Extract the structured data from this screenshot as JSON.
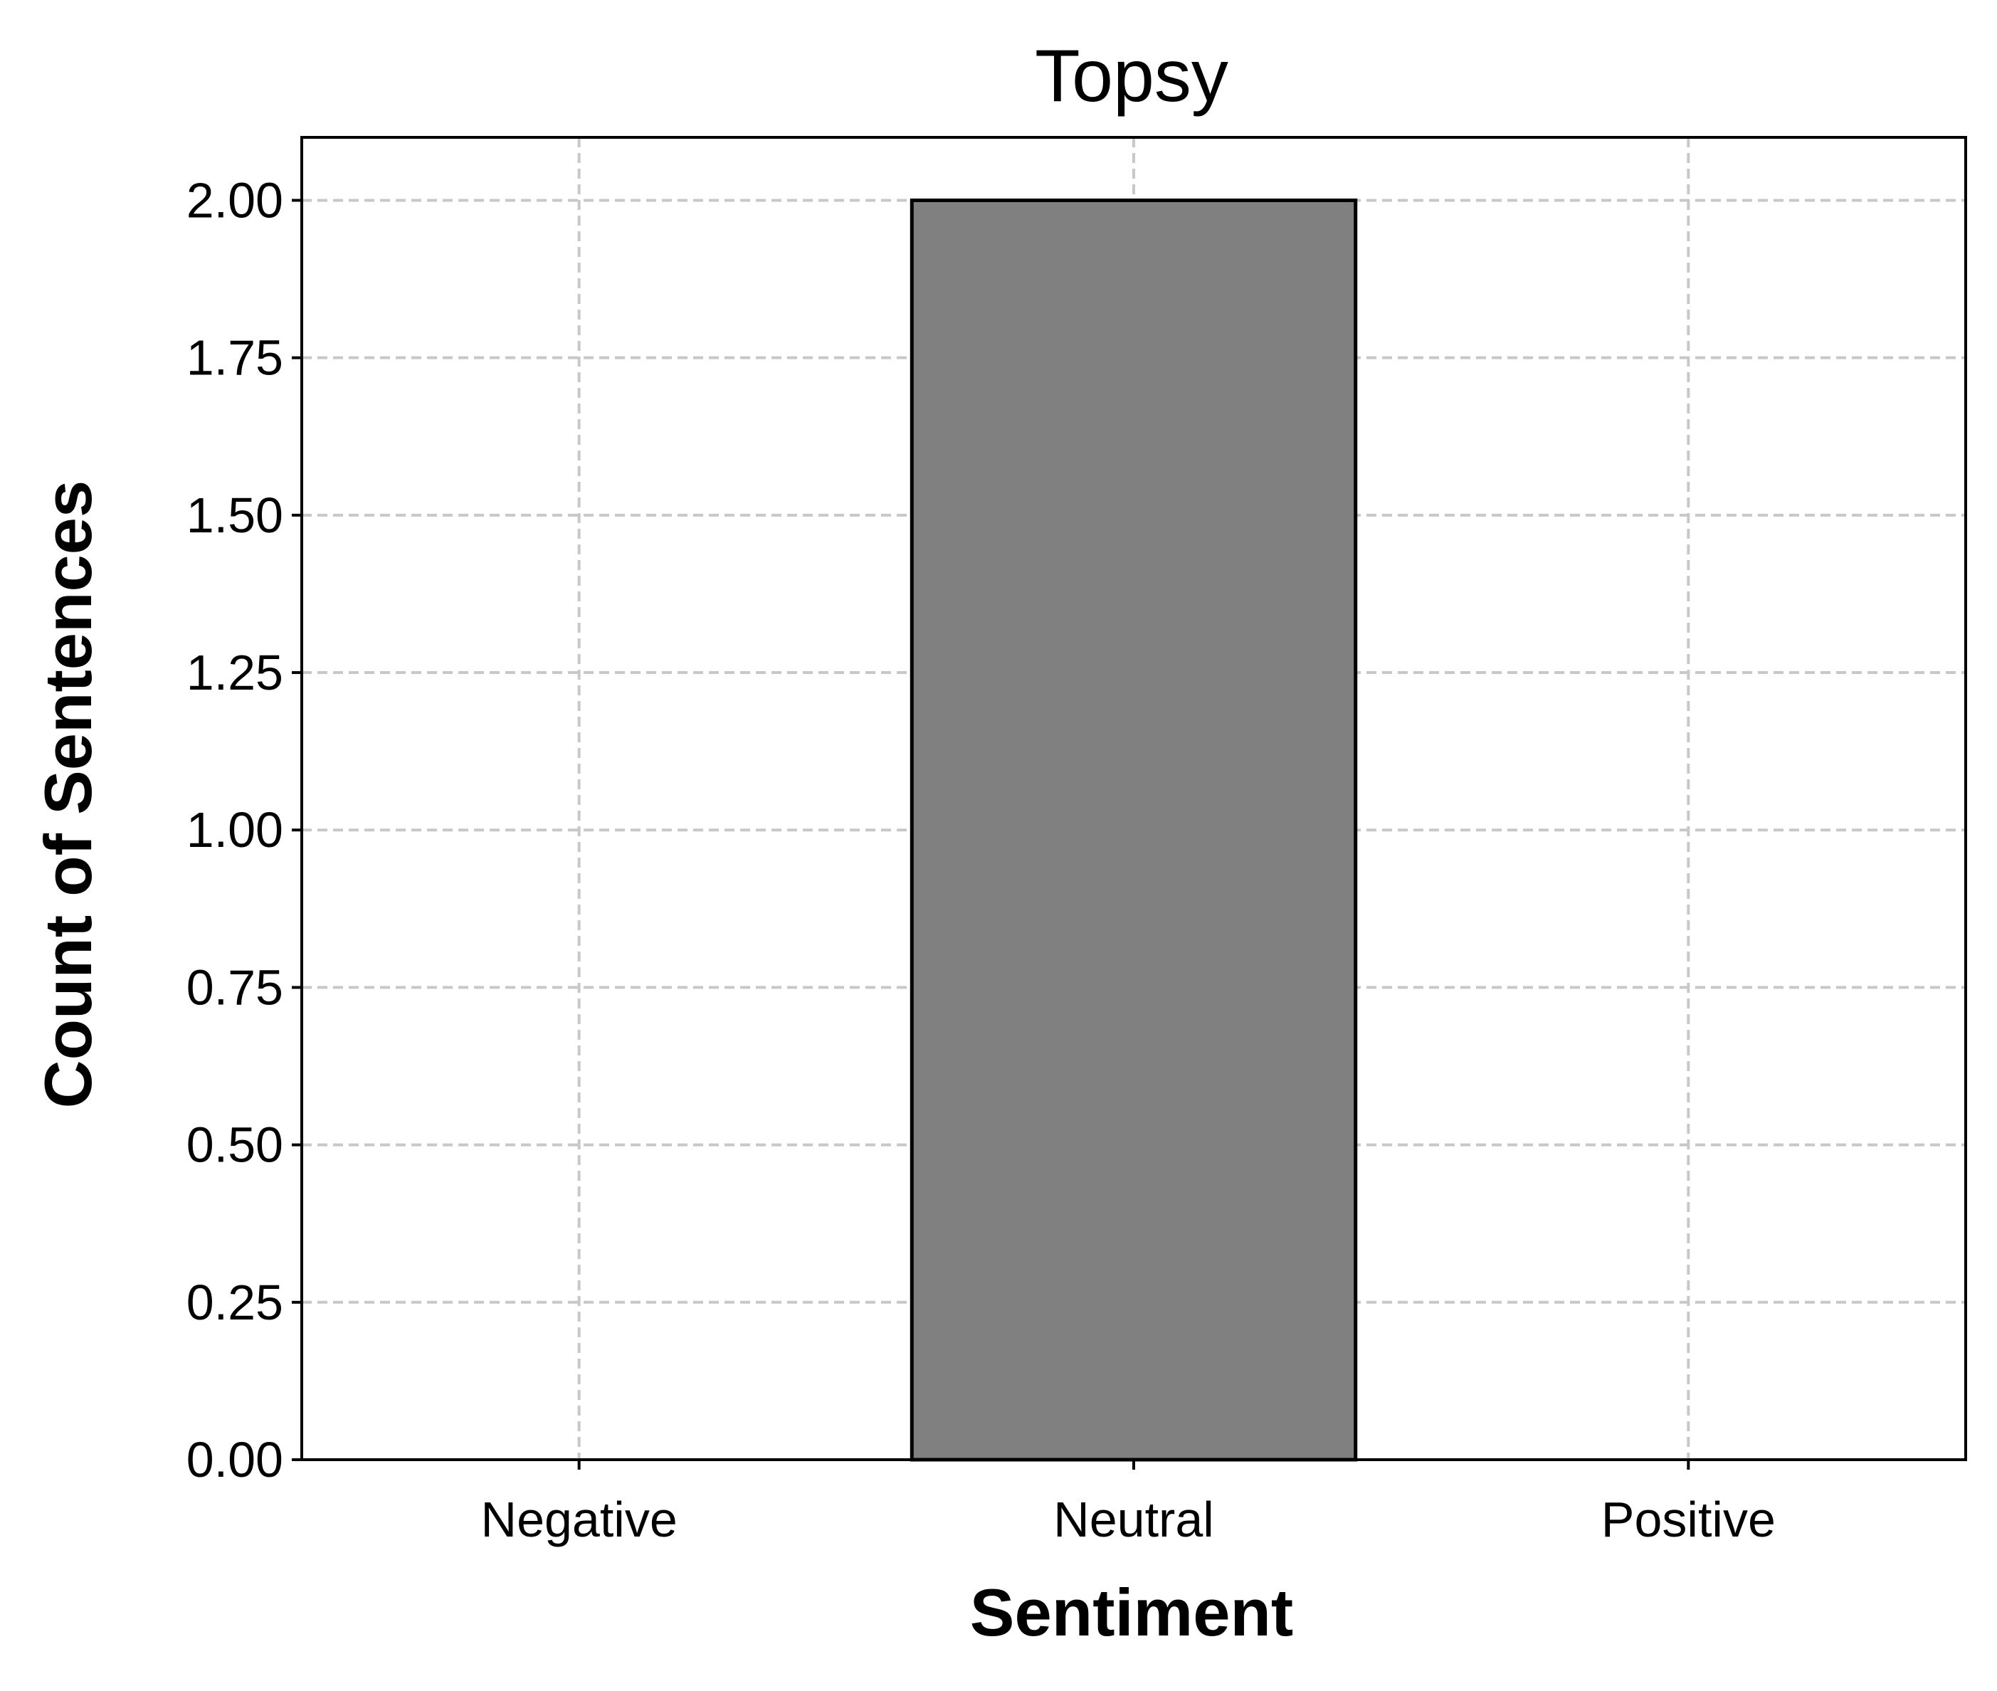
{
  "chart_data": {
    "type": "bar",
    "title": "Topsy",
    "xlabel": "Sentiment",
    "ylabel": "Count of Sentences",
    "categories": [
      "Negative",
      "Neutral",
      "Positive"
    ],
    "values": [
      0,
      2,
      0
    ],
    "ylim": [
      0,
      2.1
    ],
    "yticks": [
      "0.00",
      "0.25",
      "0.50",
      "0.75",
      "1.00",
      "1.25",
      "1.50",
      "1.75",
      "2.00"
    ],
    "grid": true,
    "legend": "none",
    "bar_color": "#808080",
    "bar_edge_color": "#000000"
  }
}
